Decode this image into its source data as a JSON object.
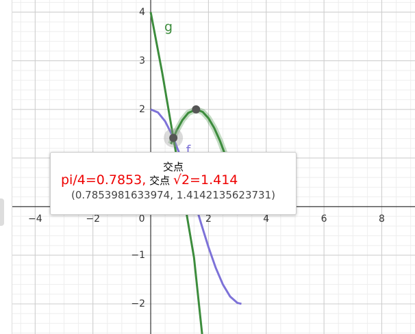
{
  "chart_data": {
    "type": "line",
    "xlim": [
      -4.79,
      9.15
    ],
    "ylim": [
      -2.62,
      4.25
    ],
    "xticks": [
      {
        "value": -4,
        "label": "−4"
      },
      {
        "value": -2,
        "label": "−2"
      },
      0,
      2,
      4,
      6,
      8
    ],
    "yticks": [
      {
        "value": -2,
        "label": "−2"
      },
      {
        "value": -1,
        "label": "−1"
      },
      1,
      2,
      3,
      4
    ],
    "grid": true,
    "curves": [
      {
        "label": "f",
        "color": "#7d72d8",
        "x": [
          0,
          0.25,
          0.5,
          0.75,
          1,
          1.25,
          1.5,
          1.75,
          2,
          2.25,
          2.5,
          2.75,
          3,
          3.14
        ],
        "values": [
          2,
          1.938,
          1.755,
          1.463,
          1.081,
          0.631,
          0.141,
          -0.356,
          -0.832,
          -1.256,
          -1.602,
          -1.849,
          -1.98,
          -2
        ]
      },
      {
        "label": "g",
        "color": "#3c8c3c",
        "x": [
          0,
          0.4,
          0.785,
          1.2,
          1.5,
          1.78
        ],
        "values": [
          4,
          2.75,
          1.414,
          0,
          -1.05,
          -2.62
        ]
      },
      {
        "color": "#3c8c3c",
        "x": [
          0.7,
          0.9,
          1.1,
          1.3,
          1.571,
          1.8,
          2.0,
          2.2,
          2.4,
          2.6
        ],
        "values": [
          1.288,
          1.567,
          1.782,
          1.927,
          2,
          1.948,
          1.819,
          1.617,
          1.351,
          1.031
        ]
      }
    ],
    "points": [
      {
        "x": 0.785,
        "y": 1.414
      },
      {
        "x": 1.571,
        "y": 2
      }
    ]
  },
  "tooltip": {
    "title": "交点",
    "parts": [
      "pi/4=0.7853,",
      "交点",
      "√2=1.414"
    ],
    "coords": "(0.7853981633974, 1.4142135623731)"
  }
}
